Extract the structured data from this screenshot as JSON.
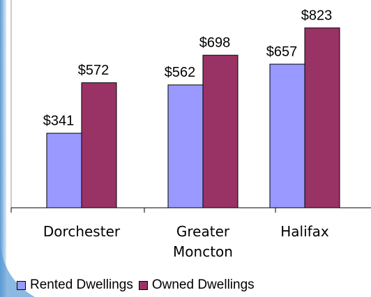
{
  "chart_data": {
    "type": "bar",
    "categories": [
      "Dorchester",
      "Greater Moncton",
      "Halifax"
    ],
    "series": [
      {
        "name": "Rented Dwellings",
        "color": "#9999ff",
        "values": [
          341,
          562,
          657
        ],
        "value_labels": [
          "$341",
          "$562",
          "$657"
        ]
      },
      {
        "name": "Owned Dwellings",
        "color": "#993366",
        "values": [
          572,
          698,
          823
        ],
        "value_labels": [
          "$572",
          "$698",
          "$823"
        ]
      }
    ]
  }
}
